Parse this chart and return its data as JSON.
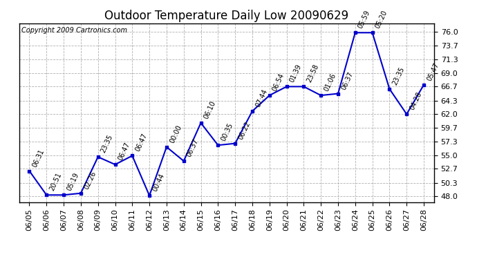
{
  "title": "Outdoor Temperature Daily Low 20090629",
  "copyright": "Copyright 2009 Cartronics.com",
  "x_labels": [
    "06/05",
    "06/06",
    "06/07",
    "06/08",
    "06/09",
    "06/10",
    "06/11",
    "06/12",
    "06/13",
    "06/14",
    "06/15",
    "06/16",
    "06/17",
    "06/18",
    "06/19",
    "06/20",
    "06/21",
    "06/22",
    "06/23",
    "06/24",
    "06/25",
    "06/26",
    "06/27",
    "06/28"
  ],
  "y_values": [
    52.3,
    48.2,
    48.2,
    48.5,
    54.7,
    53.4,
    54.9,
    48.1,
    56.4,
    54.0,
    60.5,
    56.7,
    57.0,
    62.5,
    65.2,
    66.7,
    66.7,
    65.2,
    65.5,
    75.9,
    75.9,
    66.3,
    62.0,
    67.0
  ],
  "time_labels": [
    "06:31",
    "20:51",
    "05:19",
    "02:26",
    "23:35",
    "06:47",
    "06:47",
    "00:44",
    "00:00",
    "06:37",
    "06:10",
    "00:35",
    "06:22",
    "07:44",
    "06:54",
    "01:39",
    "23:58",
    "01:06",
    "06:37",
    "05:59",
    "05:20",
    "23:35",
    "04:28",
    "05:47"
  ],
  "y_ticks": [
    48.0,
    50.3,
    52.7,
    55.0,
    57.3,
    59.7,
    62.0,
    64.3,
    66.7,
    69.0,
    71.3,
    73.7,
    76.0
  ],
  "ylim": [
    47.0,
    77.5
  ],
  "line_color": "#0000cc",
  "marker_color": "#0000cc",
  "bg_color": "#ffffff",
  "grid_color": "#b0b0b0",
  "title_fontsize": 12,
  "copyright_fontsize": 7,
  "tick_fontsize": 8,
  "label_fontsize": 7
}
